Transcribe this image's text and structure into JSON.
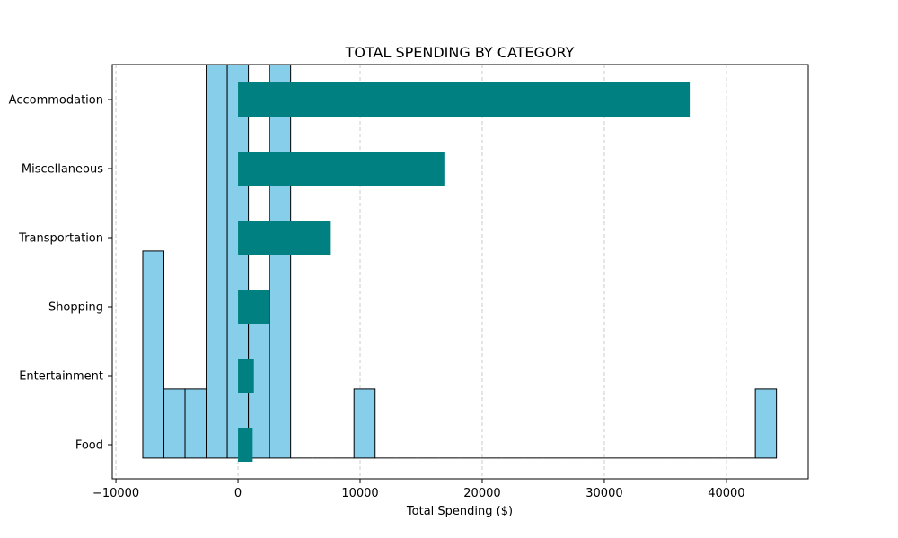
{
  "chart_data": {
    "type": "bar",
    "orientation": "horizontal",
    "title": "TOTAL SPENDING BY CATEGORY",
    "xlabel": "Total Spending ($)",
    "ylabel": "",
    "categories": [
      "Food",
      "Entertainment",
      "Shopping",
      "Transportation",
      "Miscellaneous",
      "Accommodation"
    ],
    "values": [
      1200,
      1300,
      2500,
      7600,
      16900,
      37000
    ],
    "xlim": [
      -10300,
      46700
    ],
    "x_ticks": [
      -10000,
      0,
      10000,
      20000,
      30000,
      40000
    ],
    "x_tick_labels": [
      "−10000",
      "0",
      "10000",
      "20000",
      "30000",
      "40000"
    ],
    "grid": "vertical-dashed",
    "colors": {
      "bars": "#008080",
      "histogram": "#87ceeb",
      "edge": "#000000",
      "grid": "#cccccc"
    },
    "histogram_overlay": {
      "bin_start": -7800,
      "bin_width": 1730,
      "counts": [
        3,
        1,
        1,
        7,
        7,
        2,
        7,
        0,
        0,
        0,
        1,
        0,
        0,
        0,
        0,
        0,
        0,
        0,
        0,
        0,
        0,
        0,
        0,
        0,
        0,
        0,
        0,
        0,
        0,
        1
      ],
      "count_range": [
        -0.3,
        5.7
      ]
    }
  }
}
